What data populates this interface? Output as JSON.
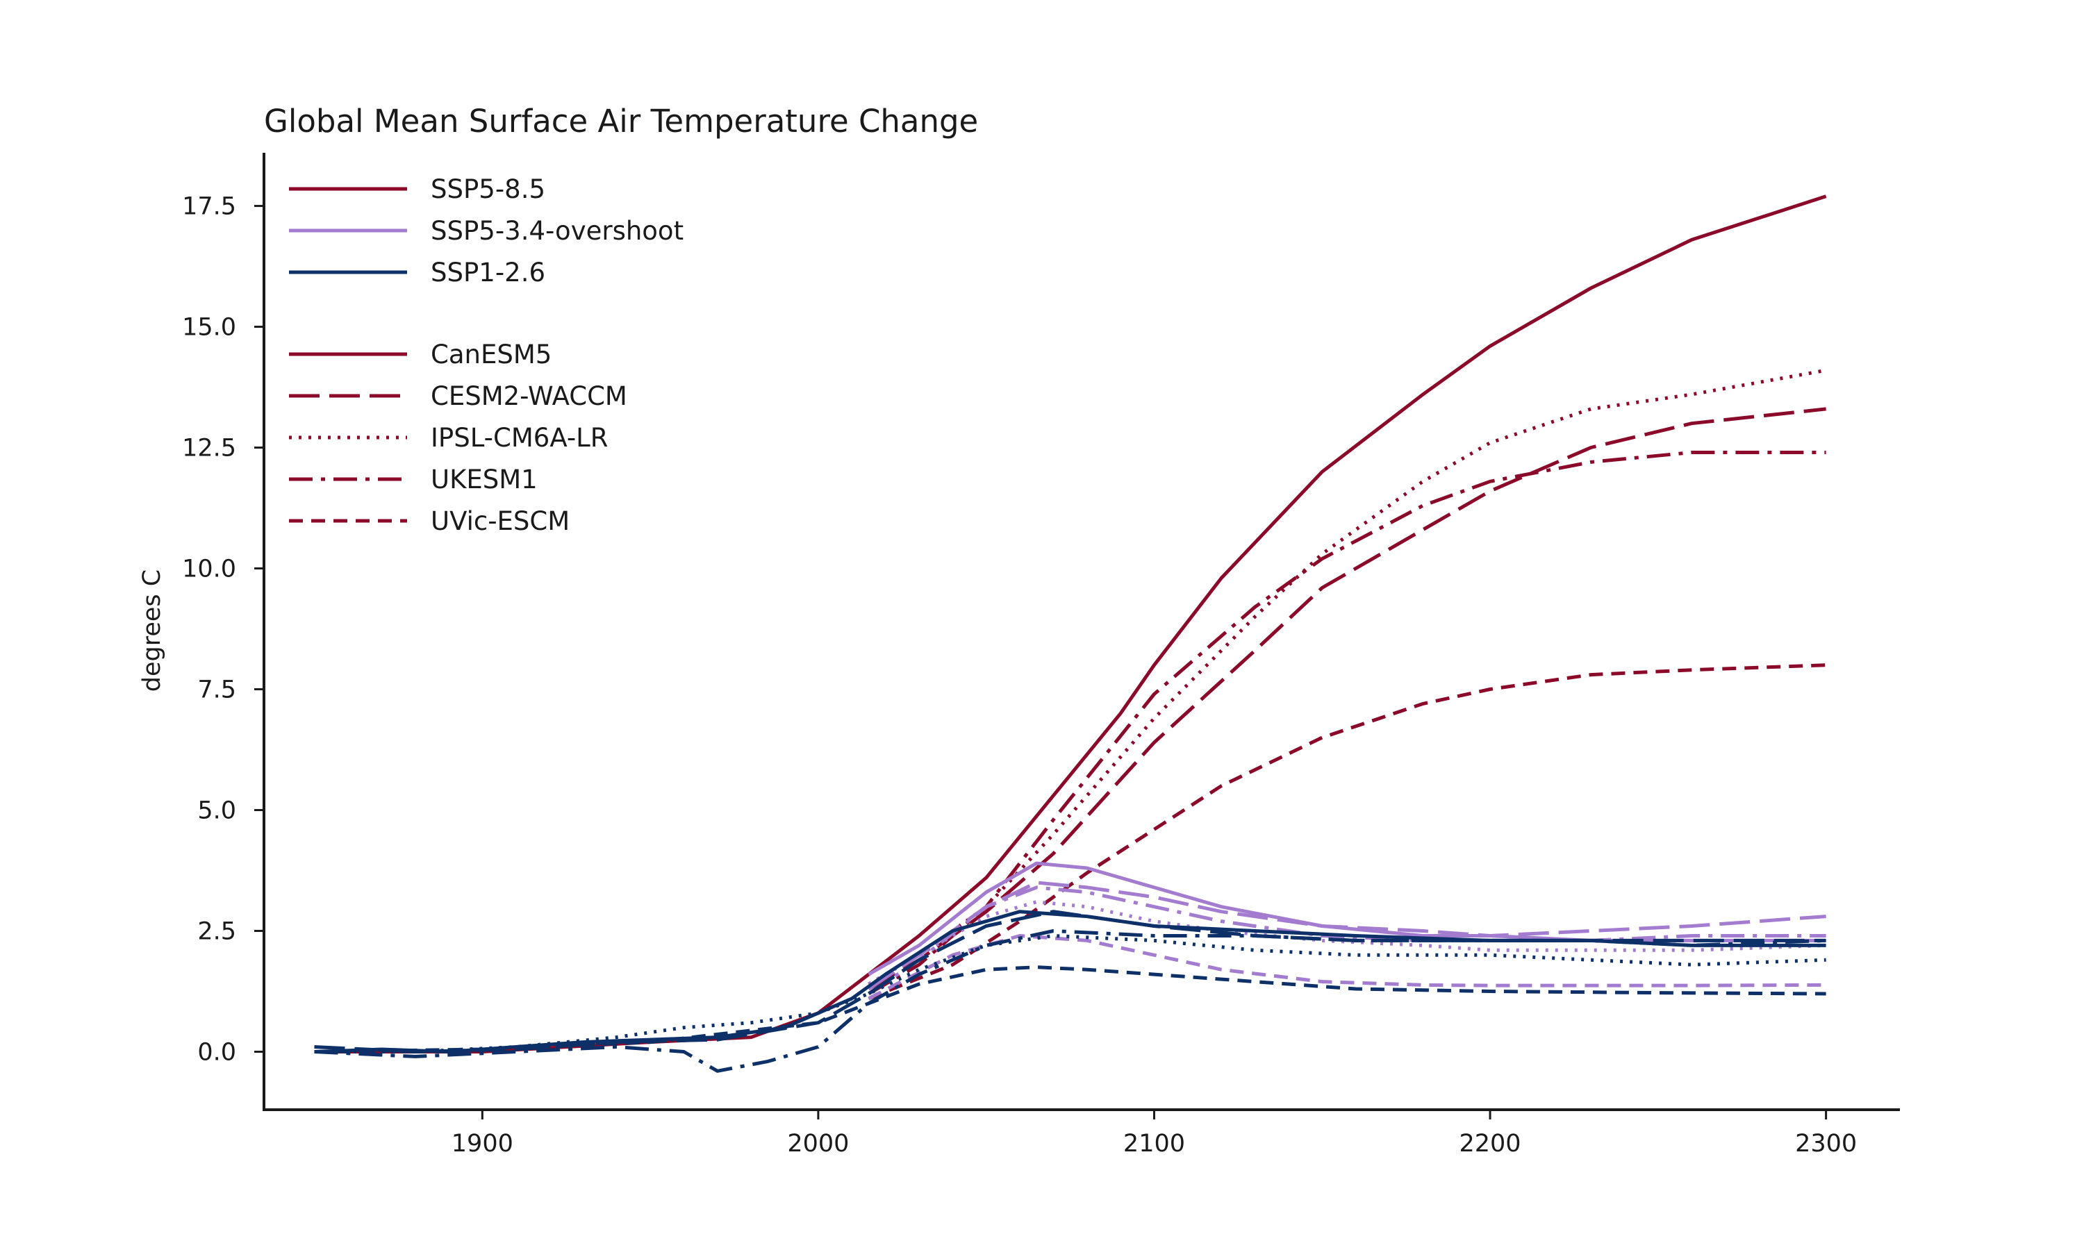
{
  "chart_data": {
    "type": "line",
    "title": "Global Mean Surface Air Temperature Change",
    "xlabel": "",
    "ylabel": "degrees C",
    "xlim": [
      1835,
      2322
    ],
    "ylim": [
      -1.2,
      18.6
    ],
    "x_ticks": [
      1900,
      2000,
      2100,
      2200,
      2300
    ],
    "y_ticks": [
      0.0,
      2.5,
      5.0,
      7.5,
      10.0,
      12.5,
      15.0,
      17.5
    ],
    "x_tick_labels": [
      "1900",
      "2000",
      "2100",
      "2200",
      "2300"
    ],
    "y_tick_labels": [
      "0.0",
      "2.5",
      "5.0",
      "7.5",
      "10.0",
      "12.5",
      "15.0",
      "17.5"
    ],
    "grid": false,
    "legend_position": "top-left",
    "scenario_legend": [
      {
        "label": "SSP5-8.5",
        "color": "#8b0a2a"
      },
      {
        "label": "SSP5-3.4-overshoot",
        "color": "#a37ccf"
      },
      {
        "label": "SSP1-2.6",
        "color": "#0e3068"
      }
    ],
    "model_legend": [
      {
        "label": "CanESM5",
        "dash": "solid"
      },
      {
        "label": "CESM2-WACCM",
        "dash": "longdash"
      },
      {
        "label": "IPSL-CM6A-LR",
        "dash": "dotted"
      },
      {
        "label": "UKESM1",
        "dash": "dashdot"
      },
      {
        "label": "UVic-ESCM",
        "dash": "dashed"
      }
    ],
    "series": [
      {
        "scenario": "SSP5-8.5",
        "model": "CanESM5",
        "color": "#8b0a2a",
        "dash": "solid",
        "x": [
          1850,
          1900,
          1950,
          1980,
          2000,
          2015,
          2030,
          2050,
          2070,
          2090,
          2100,
          2120,
          2150,
          2180,
          2200,
          2230,
          2260,
          2300
        ],
        "y": [
          0.0,
          0.0,
          0.2,
          0.3,
          0.8,
          1.6,
          2.4,
          3.6,
          5.3,
          7.0,
          8.0,
          9.8,
          12.0,
          13.6,
          14.6,
          15.8,
          16.8,
          17.7
        ]
      },
      {
        "scenario": "SSP5-8.5",
        "model": "CESM2-WACCM",
        "color": "#8b0a2a",
        "dash": "longdash",
        "x": [
          2015,
          2030,
          2050,
          2070,
          2100,
          2130,
          2150,
          2180,
          2200,
          2230,
          2260,
          2300
        ],
        "y": [
          1.3,
          1.9,
          2.9,
          4.1,
          6.4,
          8.3,
          9.6,
          10.8,
          11.6,
          12.5,
          13.0,
          13.3
        ]
      },
      {
        "scenario": "SSP5-8.5",
        "model": "IPSL-CM6A-LR",
        "color": "#8b0a2a",
        "dash": "dotted",
        "x": [
          2015,
          2030,
          2050,
          2070,
          2100,
          2130,
          2150,
          2180,
          2200,
          2230,
          2260,
          2300
        ],
        "y": [
          1.4,
          2.0,
          3.0,
          4.5,
          6.9,
          9.0,
          10.3,
          11.8,
          12.6,
          13.3,
          13.6,
          14.1
        ]
      },
      {
        "scenario": "SSP5-8.5",
        "model": "UKESM1",
        "color": "#8b0a2a",
        "dash": "dashdot",
        "x": [
          2015,
          2030,
          2050,
          2070,
          2100,
          2130,
          2150,
          2180,
          2200,
          2230,
          2260,
          2300
        ],
        "y": [
          1.2,
          1.8,
          3.0,
          4.8,
          7.4,
          9.2,
          10.2,
          11.3,
          11.8,
          12.2,
          12.4,
          12.4
        ]
      },
      {
        "scenario": "SSP5-8.5",
        "model": "UVic-ESCM",
        "color": "#8b0a2a",
        "dash": "dashed",
        "x": [
          2015,
          2040,
          2060,
          2080,
          2100,
          2120,
          2150,
          2180,
          2200,
          2230,
          2260,
          2300
        ],
        "y": [
          1.1,
          1.8,
          2.7,
          3.7,
          4.6,
          5.5,
          6.5,
          7.2,
          7.5,
          7.8,
          7.9,
          8.0
        ]
      },
      {
        "scenario": "SSP5-3.4-overshoot",
        "model": "CanESM5",
        "color": "#a37ccf",
        "dash": "solid",
        "x": [
          2015,
          2030,
          2050,
          2065,
          2080,
          2100,
          2120,
          2150,
          2180,
          2200,
          2230,
          2260,
          2300
        ],
        "y": [
          1.6,
          2.2,
          3.3,
          3.9,
          3.8,
          3.4,
          3.0,
          2.6,
          2.4,
          2.4,
          2.3,
          2.3,
          2.3
        ]
      },
      {
        "scenario": "SSP5-3.4-overshoot",
        "model": "CESM2-WACCM",
        "color": "#a37ccf",
        "dash": "longdash",
        "x": [
          2015,
          2030,
          2050,
          2065,
          2080,
          2100,
          2120,
          2150,
          2180,
          2200,
          2230,
          2260,
          2300
        ],
        "y": [
          1.3,
          2.0,
          3.0,
          3.5,
          3.4,
          3.2,
          2.9,
          2.6,
          2.5,
          2.4,
          2.5,
          2.6,
          2.8
        ]
      },
      {
        "scenario": "SSP5-3.4-overshoot",
        "model": "IPSL-CM6A-LR",
        "color": "#a37ccf",
        "dash": "dotted",
        "x": [
          2015,
          2030,
          2050,
          2065,
          2080,
          2100,
          2120,
          2150,
          2180,
          2200,
          2230,
          2260,
          2300
        ],
        "y": [
          1.4,
          2.0,
          2.8,
          3.1,
          3.0,
          2.7,
          2.5,
          2.3,
          2.2,
          2.1,
          2.1,
          2.1,
          2.2
        ]
      },
      {
        "scenario": "SSP5-3.4-overshoot",
        "model": "UKESM1",
        "color": "#a37ccf",
        "dash": "dashdot",
        "x": [
          2015,
          2030,
          2050,
          2065,
          2080,
          2100,
          2120,
          2150,
          2180,
          2200,
          2230,
          2260,
          2300
        ],
        "y": [
          1.2,
          1.9,
          3.0,
          3.4,
          3.3,
          3.0,
          2.7,
          2.4,
          2.3,
          2.3,
          2.3,
          2.4,
          2.4
        ]
      },
      {
        "scenario": "SSP5-3.4-overshoot",
        "model": "UVic-ESCM",
        "color": "#a37ccf",
        "dash": "dashed",
        "x": [
          2015,
          2040,
          2060,
          2080,
          2100,
          2120,
          2150,
          2180,
          2200,
          2230,
          2260,
          2300
        ],
        "y": [
          1.1,
          2.0,
          2.4,
          2.3,
          2.0,
          1.7,
          1.45,
          1.38,
          1.37,
          1.37,
          1.37,
          1.38
        ]
      },
      {
        "scenario": "SSP1-2.6",
        "model": "CanESM5",
        "color": "#0e3068",
        "dash": "solid",
        "x": [
          1850,
          1870,
          1890,
          1910,
          1930,
          1950,
          1970,
          1990,
          2000,
          2010,
          2020,
          2040,
          2060,
          2080,
          2100,
          2130,
          2160,
          2200,
          2230,
          2260,
          2300
        ],
        "y": [
          0.0,
          0.05,
          0.0,
          0.1,
          0.2,
          0.25,
          0.3,
          0.5,
          0.8,
          1.1,
          1.6,
          2.5,
          2.9,
          2.8,
          2.6,
          2.5,
          2.4,
          2.3,
          2.3,
          2.2,
          2.2
        ]
      },
      {
        "scenario": "SSP1-2.6",
        "model": "CESM2-WACCM",
        "color": "#0e3068",
        "dash": "longdash",
        "x": [
          1850,
          1880,
          1910,
          1940,
          1970,
          2000,
          2015,
          2030,
          2050,
          2070,
          2100,
          2130,
          2160,
          2200,
          2230,
          2260,
          2300
        ],
        "y": [
          0.1,
          0.0,
          0.05,
          0.2,
          0.25,
          0.6,
          1.2,
          1.9,
          2.6,
          2.9,
          2.6,
          2.4,
          2.3,
          2.3,
          2.3,
          2.3,
          2.3
        ]
      },
      {
        "scenario": "SSP1-2.6",
        "model": "IPSL-CM6A-LR",
        "color": "#0e3068",
        "dash": "dotted",
        "x": [
          1850,
          1880,
          1910,
          1940,
          1960,
          1980,
          2000,
          2015,
          2030,
          2050,
          2070,
          2100,
          2130,
          2160,
          2200,
          2230,
          2260,
          2300
        ],
        "y": [
          0.0,
          0.0,
          0.1,
          0.3,
          0.5,
          0.6,
          0.8,
          1.2,
          1.7,
          2.2,
          2.4,
          2.3,
          2.1,
          2.0,
          2.0,
          1.9,
          1.8,
          1.9
        ]
      },
      {
        "scenario": "SSP1-2.6",
        "model": "UKESM1",
        "color": "#0e3068",
        "dash": "dashdot",
        "x": [
          1850,
          1880,
          1910,
          1940,
          1960,
          1970,
          1985,
          2000,
          2015,
          2030,
          2050,
          2070,
          2100,
          2130,
          2160,
          2200,
          2230,
          2260,
          2300
        ],
        "y": [
          0.0,
          -0.1,
          0.0,
          0.1,
          0.0,
          -0.4,
          -0.2,
          0.1,
          1.0,
          1.6,
          2.2,
          2.5,
          2.4,
          2.4,
          2.3,
          2.3,
          2.3,
          2.2,
          2.3
        ]
      },
      {
        "scenario": "SSP1-2.6",
        "model": "UVic-ESCM",
        "color": "#0e3068",
        "dash": "dashed",
        "x": [
          1850,
          1900,
          1950,
          2000,
          2015,
          2030,
          2050,
          2065,
          2080,
          2100,
          2130,
          2160,
          2200,
          2250,
          2300
        ],
        "y": [
          0.0,
          0.05,
          0.2,
          0.6,
          1.0,
          1.4,
          1.7,
          1.75,
          1.7,
          1.6,
          1.45,
          1.3,
          1.25,
          1.22,
          1.2
        ]
      }
    ]
  }
}
